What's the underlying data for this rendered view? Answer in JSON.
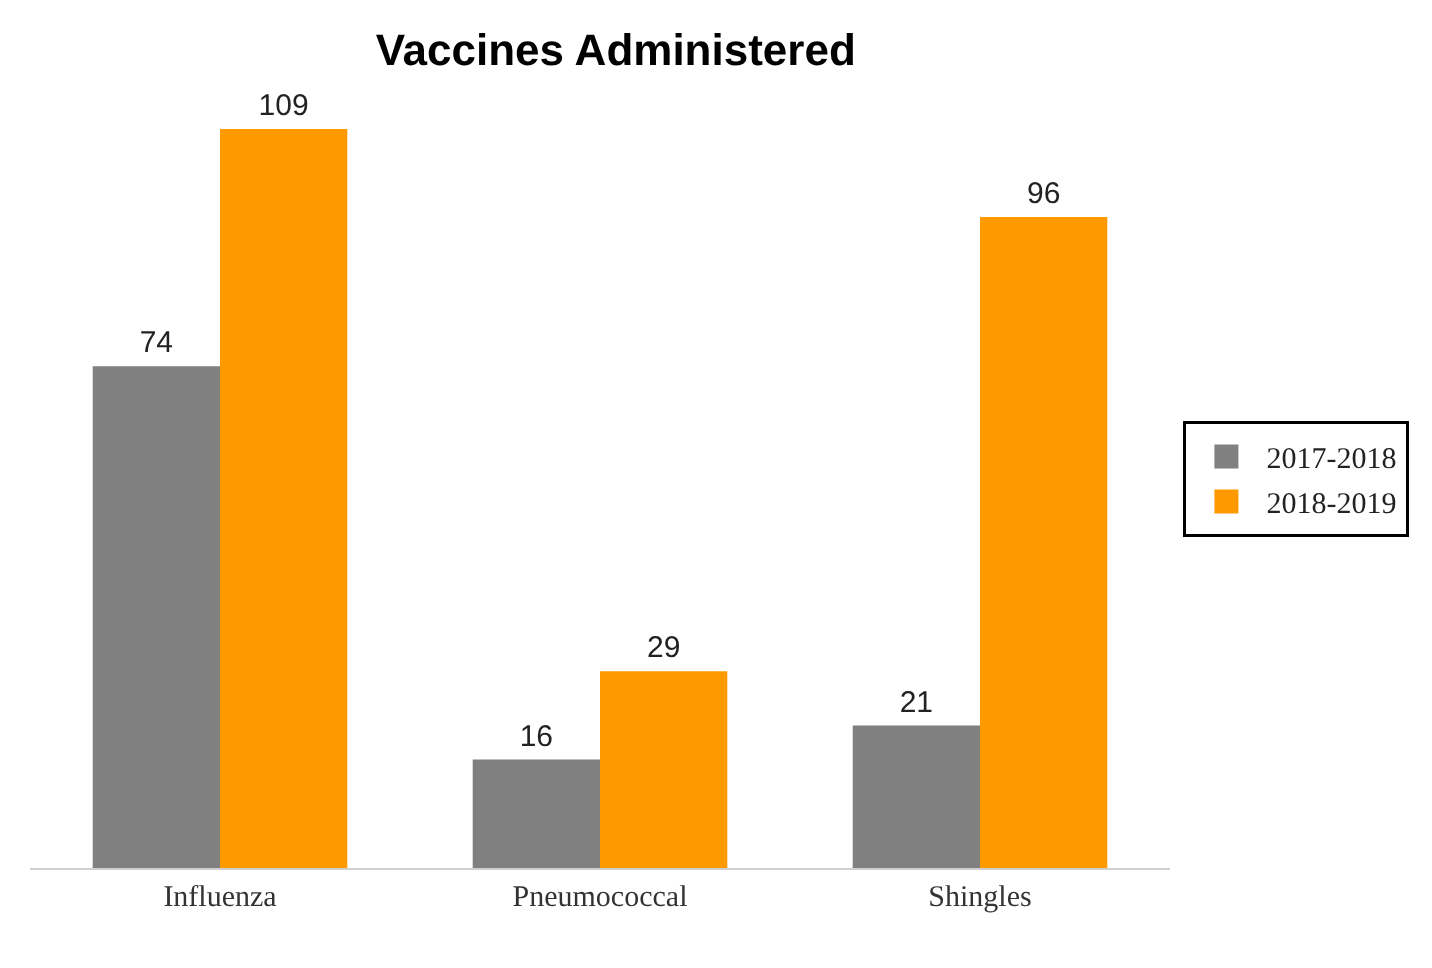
{
  "chart_data": {
    "type": "bar",
    "title": "Vaccines Administered",
    "categories": [
      "Influenza",
      "Pneumococcal",
      "Shingles"
    ],
    "series": [
      {
        "name": "2017-2018",
        "color": "#808080",
        "values": [
          74,
          16,
          21
        ]
      },
      {
        "name": "2018-2019",
        "color": "#ff9900",
        "values": [
          109,
          29,
          96
        ]
      }
    ],
    "data_labels": true,
    "legend": "right",
    "grid": false
  }
}
